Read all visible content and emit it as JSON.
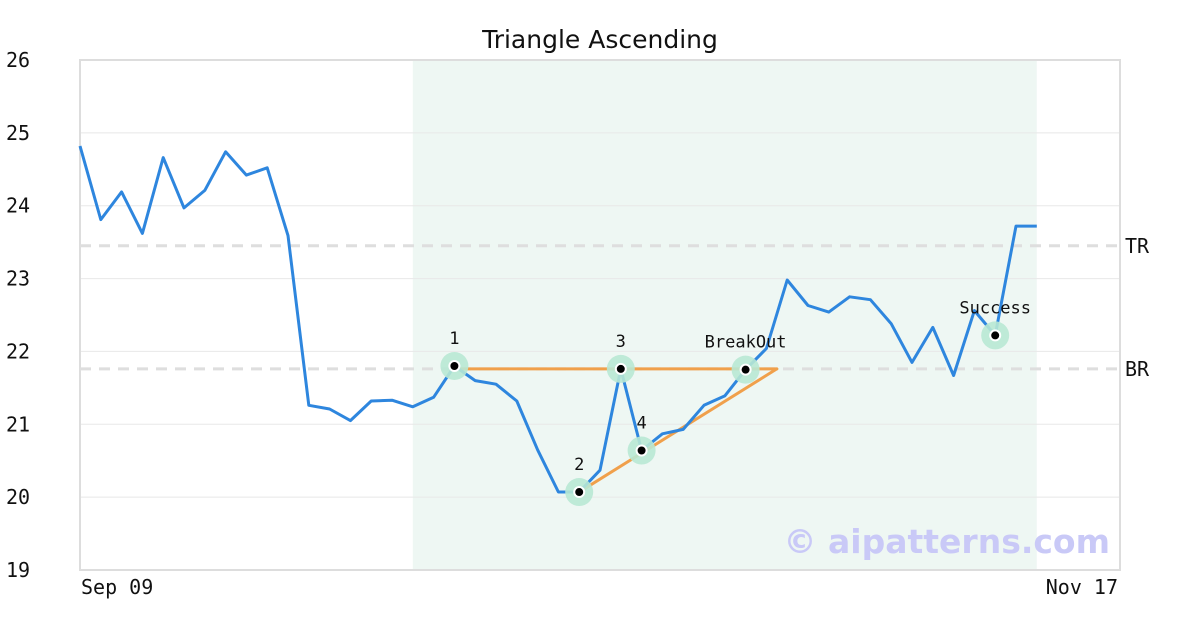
{
  "chart_data": {
    "type": "line",
    "title": "Triangle Ascending",
    "xlabel": "",
    "ylabel": "",
    "ylim": [
      19,
      26
    ],
    "yticks": [
      19,
      20,
      21,
      22,
      23,
      24,
      25,
      26
    ],
    "x_range_labels": {
      "start": "Sep 09",
      "end": "Nov 17"
    },
    "grid": "horizontal",
    "series": [
      {
        "color": "#2e86de",
        "values": [
          24.82,
          23.81,
          24.19,
          23.62,
          24.66,
          23.97,
          24.21,
          24.74,
          24.42,
          24.52,
          23.59,
          21.26,
          21.21,
          21.05,
          21.32,
          21.33,
          21.24,
          21.37,
          21.8,
          21.6,
          21.55,
          21.32,
          20.65,
          20.07,
          20.07,
          20.37,
          21.76,
          20.64,
          20.87,
          20.93,
          21.26,
          21.39,
          21.75,
          22.04,
          22.98,
          22.63,
          22.54,
          22.75,
          22.71,
          22.38,
          21.85,
          22.33,
          21.67,
          22.56,
          22.22,
          23.72,
          23.72
        ]
      }
    ],
    "pattern_zone": {
      "start_index": 16,
      "end_index": 46,
      "color": "#eef7f3"
    },
    "levels": [
      {
        "label": "TR",
        "value": 23.45
      },
      {
        "label": "BR",
        "value": 21.76
      }
    ],
    "pattern_lines": [
      {
        "from": [
          18,
          21.76
        ],
        "to": [
          33.5,
          21.76
        ]
      },
      {
        "from": [
          24,
          20.07
        ],
        "to": [
          33.5,
          21.76
        ]
      }
    ],
    "points": [
      {
        "label": "1",
        "index": 18,
        "value": 21.8
      },
      {
        "label": "2",
        "index": 24,
        "value": 20.07
      },
      {
        "label": "3",
        "index": 26,
        "value": 21.76
      },
      {
        "label": "4",
        "index": 27,
        "value": 20.64
      },
      {
        "label": "BreakOut",
        "index": 32,
        "value": 21.75
      },
      {
        "label": "Success",
        "index": 44,
        "value": 22.22
      }
    ],
    "watermark": "© aipatterns.com"
  }
}
